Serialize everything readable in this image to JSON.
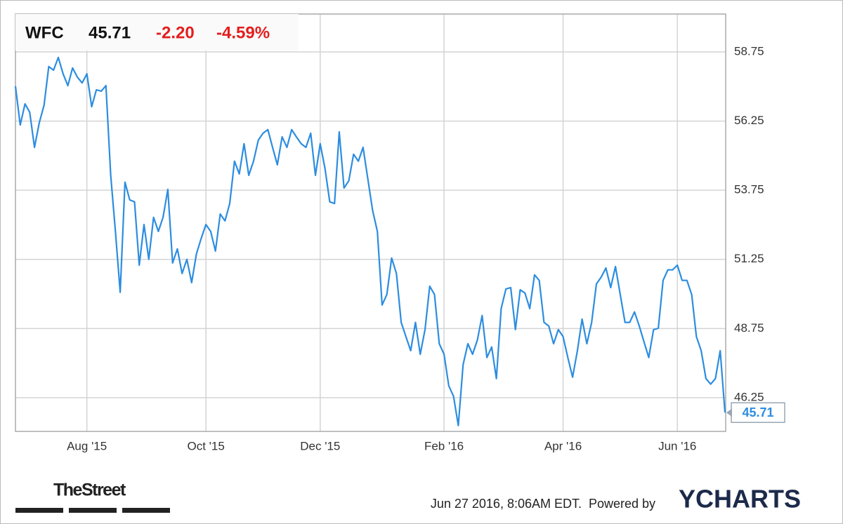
{
  "chart_data": {
    "type": "line",
    "header": {
      "ticker": "WFC",
      "price": "45.71",
      "change": "-2.20",
      "change_percent": "-4.59%"
    },
    "color": "#2c8de0",
    "grid": true,
    "ylim": [
      45.03,
      60.12
    ],
    "yticks": [
      46.25,
      48.75,
      51.25,
      53.75,
      56.25,
      58.75
    ],
    "categories": [
      null,
      null,
      null,
      null,
      null,
      null,
      null,
      null,
      null,
      null,
      null,
      null,
      null,
      null,
      null,
      "Aug '15",
      null,
      null,
      null,
      null,
      null,
      null,
      null,
      null,
      null,
      null,
      null,
      null,
      null,
      null,
      null,
      null,
      null,
      null,
      null,
      null,
      null,
      null,
      null,
      null,
      "Oct '15",
      null,
      null,
      null,
      null,
      null,
      null,
      null,
      null,
      null,
      null,
      null,
      null,
      null,
      null,
      null,
      null,
      null,
      null,
      null,
      null,
      null,
      null,
      null,
      "Dec '15",
      null,
      null,
      null,
      null,
      null,
      null,
      null,
      null,
      null,
      null,
      null,
      null,
      null,
      null,
      null,
      null,
      null,
      null,
      null,
      null,
      null,
      null,
      null,
      null,
      null,
      "Feb '16",
      null,
      null,
      null,
      null,
      null,
      null,
      null,
      null,
      null,
      null,
      null,
      null,
      null,
      null,
      null,
      null,
      null,
      null,
      null,
      null,
      null,
      null,
      null,
      null,
      "Apr '16",
      null,
      null,
      null,
      null,
      null,
      null,
      null,
      null,
      null,
      null,
      null,
      null,
      null,
      null,
      null,
      null,
      null,
      null,
      null,
      null,
      null,
      null,
      null,
      "Jun '16",
      null,
      null,
      null,
      null,
      null,
      null,
      null,
      null,
      null,
      null
    ],
    "values": [
      57.51,
      56.11,
      56.87,
      56.57,
      55.3,
      56.19,
      56.82,
      58.22,
      58.09,
      58.55,
      57.96,
      57.53,
      58.17,
      57.84,
      57.63,
      57.96,
      56.77,
      57.38,
      57.33,
      57.53,
      54.29,
      52.26,
      50.06,
      54.04,
      53.4,
      53.33,
      51.04,
      52.51,
      51.25,
      52.77,
      52.26,
      52.77,
      53.78,
      51.12,
      51.63,
      50.74,
      51.25,
      50.41,
      51.45,
      52.01,
      52.51,
      52.26,
      51.55,
      52.89,
      52.64,
      53.27,
      54.8,
      54.34,
      55.43,
      54.29,
      54.8,
      55.56,
      55.81,
      55.94,
      55.3,
      54.67,
      55.68,
      55.3,
      55.94,
      55.68,
      55.43,
      55.3,
      55.81,
      54.29,
      55.43,
      54.54,
      53.33,
      53.27,
      55.86,
      53.83,
      54.09,
      55.05,
      54.8,
      55.3,
      54.16,
      53.02,
      52.26,
      49.6,
      49.98,
      51.3,
      50.74,
      48.97,
      48.46,
      47.95,
      48.97,
      47.82,
      48.71,
      50.28,
      49.98,
      48.2,
      47.82,
      46.68,
      46.3,
      45.24,
      47.44,
      48.2,
      47.82,
      48.33,
      49.22,
      47.7,
      48.08,
      46.94,
      49.47,
      50.18,
      50.23,
      48.71,
      50.15,
      50.03,
      49.47,
      50.69,
      50.49,
      48.97,
      48.84,
      48.2,
      48.71,
      48.46,
      47.7,
      46.99,
      47.95,
      49.09,
      48.2,
      48.97,
      50.36,
      50.61,
      50.94,
      50.23,
      50.99,
      49.98,
      48.97,
      48.97,
      49.35,
      48.84,
      48.26,
      47.7,
      48.71,
      48.76,
      50.49,
      50.87,
      50.87,
      51.04,
      50.49,
      50.49,
      49.98,
      48.46,
      47.95,
      46.94,
      46.74,
      46.94,
      47.95,
      45.71
    ]
  },
  "footer": {
    "publisher": "TheStreet",
    "timestamp": "Jun 27 2016, 8:06AM EDT.",
    "powered_by": "Powered by",
    "brand": "YCHARTS"
  }
}
